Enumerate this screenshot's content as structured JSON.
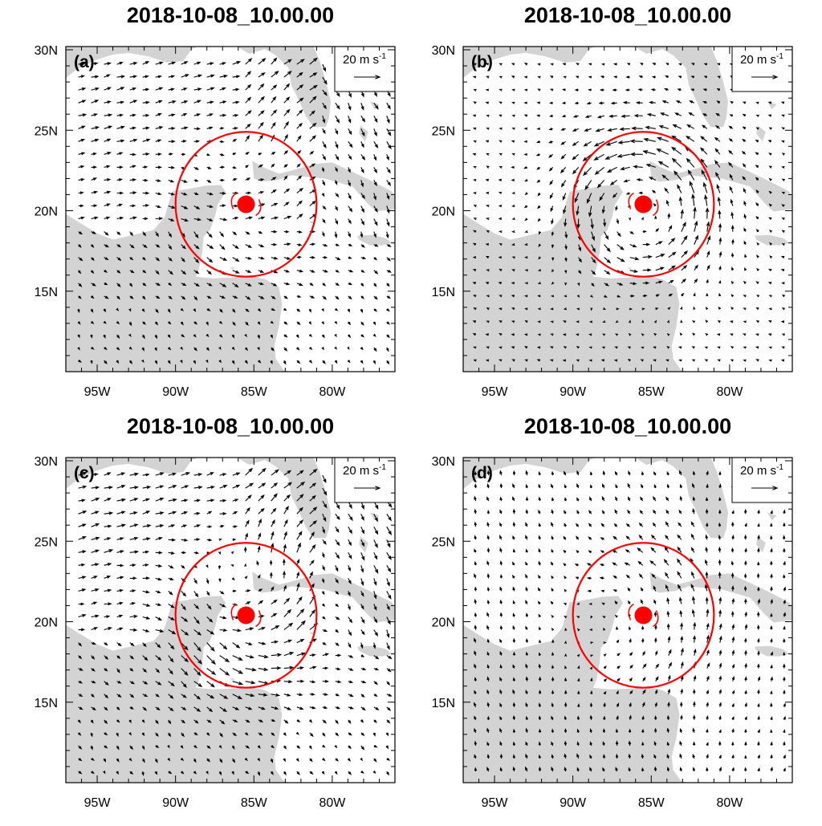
{
  "chart_data": [
    {
      "type": "vector_map",
      "title": "2018-10-08_10.00.00",
      "panel_label": "(a)",
      "reference_vector": {
        "label_main": "20 m s",
        "label_exp": "-1",
        "magnitude_ms": 20
      },
      "x_tick_labels": [
        "95W",
        "90W",
        "85W",
        "80W"
      ],
      "x_tick_values": [
        -95,
        -90,
        -85,
        -80
      ],
      "y_tick_labels": [
        "30N",
        "25N",
        "20N",
        "15N"
      ],
      "y_tick_values": [
        30,
        25,
        20,
        15
      ],
      "lon_range": [
        -97,
        -76
      ],
      "lat_range": [
        10,
        30.2
      ],
      "storm_center": {
        "lon": -85.5,
        "lat": 20.4
      },
      "circle_radius_deg": 4.5,
      "flow": {
        "pattern": "westerly",
        "strength_ms": 9,
        "vortex_ms": 4
      }
    },
    {
      "type": "vector_map",
      "title": "2018-10-08_10.00.00",
      "panel_label": "(b)",
      "reference_vector": {
        "label_main": "20 m s",
        "label_exp": "-1",
        "magnitude_ms": 20
      },
      "x_tick_labels": [
        "95W",
        "90W",
        "85W",
        "80W"
      ],
      "x_tick_values": [
        -95,
        -90,
        -85,
        -80
      ],
      "y_tick_labels": [
        "30N",
        "25N",
        "20N",
        "15N"
      ],
      "y_tick_values": [
        30,
        25,
        20,
        15
      ],
      "lon_range": [
        -97,
        -76
      ],
      "lat_range": [
        10,
        30.2
      ],
      "storm_center": {
        "lon": -85.5,
        "lat": 20.4
      },
      "circle_radius_deg": 4.5,
      "flow": {
        "pattern": "cyclonic",
        "strength_ms": 4,
        "vortex_ms": 14
      }
    },
    {
      "type": "vector_map",
      "title": "2018-10-08_10.00.00",
      "panel_label": "(c)",
      "reference_vector": {
        "label_main": "20 m s",
        "label_exp": "-1",
        "magnitude_ms": 20
      },
      "x_tick_labels": [
        "95W",
        "90W",
        "85W",
        "80W"
      ],
      "x_tick_values": [
        -95,
        -90,
        -85,
        -80
      ],
      "y_tick_labels": [
        "30N",
        "25N",
        "20N",
        "15N"
      ],
      "y_tick_values": [
        30,
        25,
        20,
        15
      ],
      "lon_range": [
        -97,
        -76
      ],
      "lat_range": [
        10,
        30.2
      ],
      "storm_center": {
        "lon": -85.5,
        "lat": 20.4
      },
      "circle_radius_deg": 4.5,
      "flow": {
        "pattern": "westerly",
        "strength_ms": 10,
        "vortex_ms": 9
      }
    },
    {
      "type": "vector_map",
      "title": "2018-10-08_10.00.00",
      "panel_label": "(d)",
      "reference_vector": {
        "label_main": "20 m s",
        "label_exp": "-1",
        "magnitude_ms": 20
      },
      "x_tick_labels": [
        "95W",
        "90W",
        "85W",
        "80W"
      ],
      "x_tick_values": [
        -95,
        -90,
        -85,
        -80
      ],
      "y_tick_labels": [
        "30N",
        "25N",
        "20N",
        "15N"
      ],
      "y_tick_values": [
        30,
        25,
        20,
        15
      ],
      "lon_range": [
        -97,
        -76
      ],
      "lat_range": [
        10,
        30.2
      ],
      "storm_center": {
        "lon": -85.5,
        "lat": 20.4
      },
      "circle_radius_deg": 4.5,
      "flow": {
        "pattern": "northerly",
        "strength_ms": 6,
        "vortex_ms": 5
      }
    }
  ],
  "colors": {
    "land": "#d3d3d3",
    "circle": "#ff0000",
    "arrow": "#000000",
    "frame": "#000000"
  }
}
